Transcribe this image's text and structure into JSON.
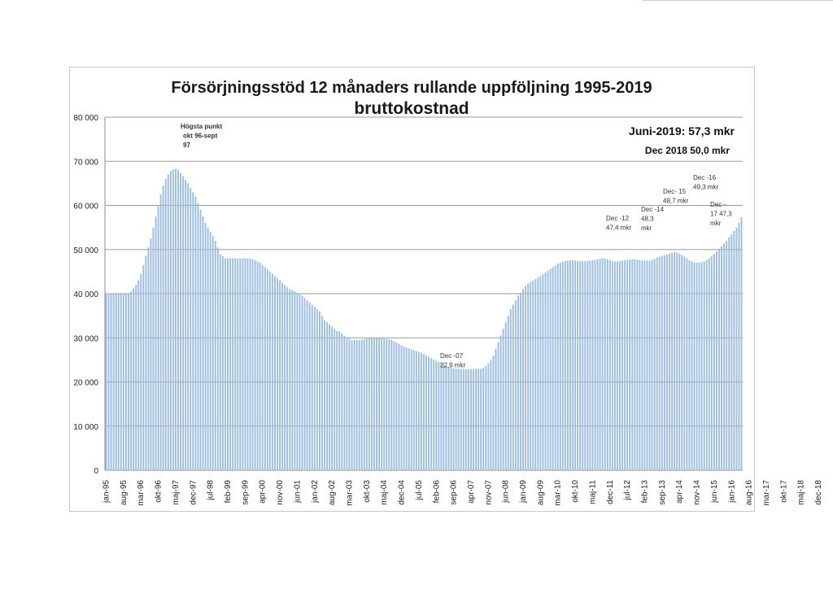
{
  "chart_data": {
    "type": "bar",
    "title": "Försörjningsstöd 12 månaders rullande uppföljning 1995-2019",
    "subtitle": "bruttokostnad",
    "ylim": [
      0,
      80000
    ],
    "y_ticks": [
      "0",
      "10 000",
      "20 000",
      "30 000",
      "40 000",
      "50 000",
      "60 000",
      "70 000",
      "80 000"
    ],
    "grid": true,
    "bar_color": "#9dbde0",
    "x_start": "1995-01",
    "x_end": "2019-06",
    "x_tick_labels": [
      "jan-95",
      "aug-95",
      "mar-96",
      "okt-96",
      "maj-97",
      "dec-97",
      "jul-98",
      "feb-99",
      "sep-99",
      "apr-00",
      "nov-00",
      "jun-01",
      "jan-02",
      "aug-02",
      "mar-03",
      "okt-03",
      "maj-04",
      "dec-04",
      "jul-05",
      "feb-06",
      "sep-06",
      "apr-07",
      "nov-07",
      "jun-08",
      "jan-09",
      "aug-09",
      "mar-10",
      "okt-10",
      "maj-11",
      "dec-11",
      "jul-12",
      "feb-13",
      "sep-13",
      "apr-14",
      "nov-14",
      "jun-15",
      "jan-16",
      "aug-16",
      "mar-17",
      "okt-17",
      "maj-18",
      "dec-18"
    ],
    "values": [
      40000,
      40000,
      40000,
      40000,
      40000,
      40000,
      40000,
      40000,
      40000,
      40000,
      40500,
      41200,
      42000,
      43000,
      44500,
      46500,
      48500,
      50500,
      52500,
      55000,
      57500,
      60000,
      62500,
      64500,
      66000,
      67000,
      67800,
      68200,
      68300,
      68000,
      67300,
      66600,
      65800,
      65000,
      64000,
      63000,
      62000,
      60500,
      59000,
      57500,
      56000,
      55000,
      54000,
      53000,
      52000,
      50500,
      49000,
      48500,
      48000,
      48000,
      48000,
      48000,
      48000,
      48000,
      48000,
      48000,
      48000,
      48000,
      48000,
      47800,
      47600,
      47300,
      47000,
      46500,
      46000,
      45500,
      45000,
      44500,
      44000,
      43500,
      43000,
      42500,
      42000,
      41500,
      41000,
      40800,
      40500,
      40200,
      40000,
      39500,
      39000,
      38500,
      38000,
      37500,
      37000,
      36500,
      36000,
      35000,
      34000,
      33500,
      33000,
      32500,
      32000,
      31500,
      31500,
      31000,
      30500,
      30000,
      29800,
      29500,
      29500,
      29500,
      29500,
      29600,
      29700,
      29800,
      29900,
      30000,
      30000,
      30000,
      30000,
      30000,
      29900,
      29800,
      29700,
      29500,
      29200,
      28900,
      28600,
      28300,
      28000,
      27800,
      27600,
      27400,
      27200,
      27000,
      26800,
      26600,
      26300,
      26000,
      25700,
      25400,
      25100,
      24800,
      24500,
      24200,
      23900,
      23600,
      23400,
      23200,
      23100,
      23000,
      23000,
      22950,
      22900,
      22900,
      22900,
      22900,
      22900,
      22950,
      23000,
      23000,
      23200,
      23600,
      24200,
      25000,
      26000,
      27500,
      29000,
      30500,
      32000,
      33500,
      35000,
      36500,
      37500,
      38500,
      39500,
      40200,
      41000,
      41800,
      42300,
      42700,
      43000,
      43300,
      43600,
      44000,
      44400,
      44800,
      45200,
      45600,
      46000,
      46400,
      46800,
      47000,
      47200,
      47400,
      47500,
      47600,
      47600,
      47500,
      47400,
      47400,
      47400,
      47400,
      47400,
      47500,
      47600,
      47700,
      47800,
      47900,
      48000,
      48000,
      47800,
      47600,
      47400,
      47300,
      47300,
      47400,
      47500,
      47600,
      47700,
      47800,
      47800,
      47800,
      47700,
      47600,
      47500,
      47500,
      47500,
      47500,
      47700,
      47900,
      48200,
      48400,
      48600,
      48700,
      48900,
      49100,
      49300,
      49400,
      49300,
      49100,
      48800,
      48400,
      48000,
      47600,
      47300,
      47100,
      47000,
      47000,
      47100,
      47300,
      47600,
      48000,
      48500,
      49000,
      49600,
      50200,
      50800,
      51400,
      52000,
      52800,
      53500,
      54200,
      55000,
      56000,
      57300
    ],
    "annotations": [
      {
        "text": [
          "Högsta punkt",
          "okt 96-sept",
          "97"
        ],
        "x": "1996-10",
        "y": 68000
      },
      {
        "text": [
          "Dec -07",
          "22,9 mkr"
        ],
        "x": "2007-12",
        "y": 22900
      },
      {
        "text": [
          "Dec -12",
          "47,4 mkr"
        ],
        "x": "2012-12",
        "y": 47400
      },
      {
        "text": [
          "Dec -14",
          "48,3",
          "mkr"
        ],
        "x": "2014-12",
        "y": 48300
      },
      {
        "text": [
          "Dec- 15",
          "48,7 mkr"
        ],
        "x": "2015-12",
        "y": 48700
      },
      {
        "text": [
          "Dec -16",
          "49,3 mkr"
        ],
        "x": "2016-12",
        "y": 49300
      },
      {
        "text": [
          "Dec -",
          "17 47,3",
          "mkr"
        ],
        "x": "2017-12",
        "y": 47300
      }
    ],
    "headline": [
      "Juni-2019: 57,3 mkr",
      "Dec 2018 50,0 mkr"
    ]
  }
}
